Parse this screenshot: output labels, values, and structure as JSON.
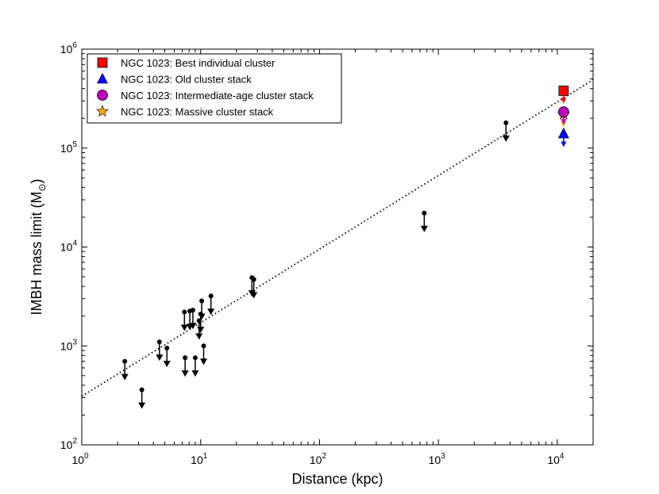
{
  "chart_data": {
    "type": "scatter",
    "title": "",
    "xlabel": "Distance (kpc)",
    "ylabel": "IMBH mass limit (M",
    "ylabel_sub": "⊙",
    "ylabel_close": ")",
    "xscale": "log",
    "yscale": "log",
    "xlim": [
      1,
      20000
    ],
    "ylim": [
      100,
      1000000
    ],
    "x_ticks": [
      {
        "value": 1,
        "base": "10",
        "exp": "0"
      },
      {
        "value": 10,
        "base": "10",
        "exp": "1"
      },
      {
        "value": 100,
        "base": "10",
        "exp": "2"
      },
      {
        "value": 1000,
        "base": "10",
        "exp": "3"
      },
      {
        "value": 10000,
        "base": "10",
        "exp": "4"
      }
    ],
    "y_ticks": [
      {
        "value": 100,
        "base": "10",
        "exp": "2"
      },
      {
        "value": 1000,
        "base": "10",
        "exp": "3"
      },
      {
        "value": 10000,
        "base": "10",
        "exp": "4"
      },
      {
        "value": 100000,
        "base": "10",
        "exp": "5"
      },
      {
        "value": 1000000,
        "base": "10",
        "exp": "6"
      }
    ],
    "grid": false,
    "legend_position": "top-left",
    "fit_line": {
      "style": "dotted",
      "points": [
        [
          1,
          310
        ],
        [
          20000,
          490000
        ]
      ]
    },
    "upper_limits": [
      {
        "x": 2.3,
        "y": 700
      },
      {
        "x": 3.2,
        "y": 360
      },
      {
        "x": 4.5,
        "y": 1100
      },
      {
        "x": 5.2,
        "y": 950
      },
      {
        "x": 7.3,
        "y": 2200
      },
      {
        "x": 7.4,
        "y": 760
      },
      {
        "x": 8.1,
        "y": 2250
      },
      {
        "x": 8.6,
        "y": 2300
      },
      {
        "x": 9.0,
        "y": 760
      },
      {
        "x": 9.7,
        "y": 1800
      },
      {
        "x": 10.0,
        "y": 2100
      },
      {
        "x": 10.2,
        "y": 2850
      },
      {
        "x": 10.6,
        "y": 1000
      },
      {
        "x": 12.2,
        "y": 3200
      },
      {
        "x": 27,
        "y": 4900
      },
      {
        "x": 28,
        "y": 4700
      },
      {
        "x": 760,
        "y": 22000
      },
      {
        "x": 3700,
        "y": 180000
      }
    ],
    "series": [
      {
        "name": "NGC 1023: Best individual cluster",
        "marker": "square",
        "color": "#ff0000",
        "x": 11300,
        "y": 380000
      },
      {
        "name": "NGC 1023: Old cluster stack",
        "marker": "triangle",
        "color": "#0000ff",
        "x": 11300,
        "y": 140000
      },
      {
        "name": "NGC 1023: Intermediate-age cluster stack",
        "marker": "circle",
        "color": "#bf00bf",
        "x": 11300,
        "y": 232000
      },
      {
        "name": "NGC 1023: Massive cluster stack",
        "marker": "star",
        "color": "#ffa500",
        "x": 11300,
        "y": 220000
      }
    ]
  }
}
